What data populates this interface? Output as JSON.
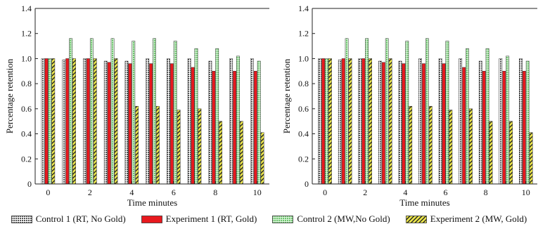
{
  "colors": {
    "control1": "#5c5c5c",
    "experiment1": "#e8191e",
    "control2": "#7ed27e",
    "experiment2": "#efe94a"
  },
  "chart_data": [
    {
      "type": "bar",
      "xlabel": "Time minutes",
      "ylabel": "Percentage retention",
      "ylim": [
        0,
        1.4
      ],
      "yticks": [
        "0",
        "0.2",
        "0.4",
        "0.6",
        "0.8",
        "1.0",
        "1.2",
        "1.4"
      ],
      "categories": [
        "0",
        "",
        "2",
        "",
        "4",
        "",
        "6",
        "",
        "8",
        "",
        "10"
      ],
      "grid": false,
      "series": [
        {
          "name": "Control 1 (RT, No Gold)",
          "values": [
            1.0,
            0.99,
            1.0,
            0.98,
            0.98,
            1.0,
            1.0,
            1.0,
            0.98,
            1.0,
            1.0
          ]
        },
        {
          "name": "Experiment 1 (RT, Gold)",
          "values": [
            1.0,
            1.0,
            1.0,
            0.97,
            0.96,
            0.96,
            0.96,
            0.93,
            0.9,
            0.9,
            0.9
          ]
        },
        {
          "name": "Control 2 (MW,No Gold)",
          "values": [
            1.0,
            1.16,
            1.16,
            1.16,
            1.14,
            1.16,
            1.14,
            1.08,
            1.08,
            1.02,
            0.98
          ]
        },
        {
          "name": "Experiment 2 (MW, Gold)",
          "values": [
            1.0,
            1.0,
            1.0,
            1.0,
            0.62,
            0.62,
            0.59,
            0.6,
            0.5,
            0.5,
            0.41
          ]
        }
      ]
    },
    {
      "type": "bar",
      "xlabel": "Time minutes",
      "ylabel": "Percentage retention",
      "ylim": [
        0,
        1.4
      ],
      "yticks": [
        "0",
        "0.2",
        "0.4",
        "0.6",
        "0.8",
        "1.0",
        "1.2",
        "1.4"
      ],
      "categories": [
        "0",
        "",
        "2",
        "",
        "4",
        "",
        "6",
        "",
        "8",
        "",
        "10"
      ],
      "grid": false,
      "series": [
        {
          "name": "Control 1 (RT, No Gold)",
          "values": [
            1.0,
            0.99,
            1.0,
            0.98,
            0.98,
            1.0,
            1.0,
            1.0,
            0.98,
            1.0,
            1.0
          ]
        },
        {
          "name": "Experiment 1 (RT, Gold)",
          "values": [
            1.0,
            1.0,
            1.0,
            0.97,
            0.96,
            0.96,
            0.96,
            0.93,
            0.9,
            0.9,
            0.9
          ]
        },
        {
          "name": "Control 2 (MW,No Gold)",
          "values": [
            1.0,
            1.16,
            1.16,
            1.16,
            1.14,
            1.16,
            1.14,
            1.08,
            1.08,
            1.02,
            0.98
          ]
        },
        {
          "name": "Experiment 2 (MW, Gold)",
          "values": [
            1.0,
            1.0,
            1.0,
            1.0,
            0.62,
            0.62,
            0.59,
            0.6,
            0.5,
            0.5,
            0.41
          ]
        }
      ]
    }
  ],
  "legend": {
    "placement": "bottom",
    "items": [
      {
        "label": "Control 1 (RT, No Gold)",
        "pattern": "checker-gray"
      },
      {
        "label": "Experiment 1 (RT, Gold)",
        "pattern": "solid-red"
      },
      {
        "label": "Control 2 (MW,No Gold)",
        "pattern": "checker-green"
      },
      {
        "label": "Experiment 2 (MW, Gold)",
        "pattern": "hatched-yellow"
      }
    ]
  }
}
